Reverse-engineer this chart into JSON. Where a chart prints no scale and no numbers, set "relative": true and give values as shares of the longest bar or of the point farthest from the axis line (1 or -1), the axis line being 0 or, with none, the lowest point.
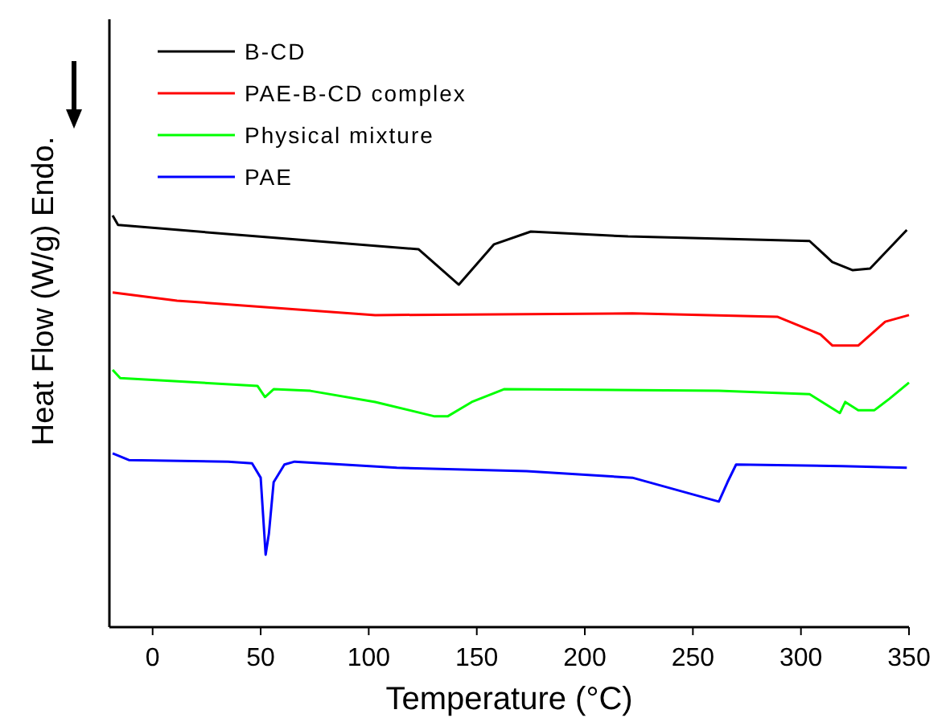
{
  "chart_data": {
    "type": "line",
    "relative": true,
    "xlabel": "Temperature (°C)",
    "ylabel": "Heat Flow (W/g) Endo.",
    "xlim": [
      -20,
      350
    ],
    "xticks": [
      0,
      50,
      100,
      150,
      200,
      250,
      300,
      350
    ],
    "legend": "top left",
    "grid": false,
    "marker": "none",
    "line_style": "solid",
    "series": [
      {
        "name": "B-CD",
        "color": "#000000",
        "x": [
          -18.5,
          -16,
          48.5,
          123,
          141.7,
          158,
          175,
          220,
          304,
          314.5,
          324,
          332,
          349
        ],
        "values": [
          1.0,
          0.977,
          0.949,
          0.918,
          0.832,
          0.93,
          0.961,
          0.949,
          0.938,
          0.887,
          0.867,
          0.871,
          0.965
        ]
      },
      {
        "name": "PAE-B-CD complex",
        "color": "#ff0000",
        "x": [
          -18.5,
          11.3,
          103,
          222,
          289,
          309,
          314.6,
          326.5,
          339,
          350
        ],
        "values": [
          0.813,
          0.793,
          0.758,
          0.762,
          0.754,
          0.711,
          0.684,
          0.684,
          0.742,
          0.758
        ]
      },
      {
        "name": "Physical mixture",
        "color": "#00ff00",
        "x": [
          -18.5,
          -15,
          48.5,
          52,
          56,
          73,
          103,
          130.5,
          136.5,
          147.7,
          162.6,
          262,
          304,
          318,
          320.5,
          326.5,
          334,
          341,
          350
        ],
        "values": [
          0.625,
          0.605,
          0.586,
          0.559,
          0.578,
          0.574,
          0.547,
          0.512,
          0.512,
          0.547,
          0.578,
          0.574,
          0.566,
          0.52,
          0.547,
          0.527,
          0.527,
          0.555,
          0.594
        ]
      },
      {
        "name": "PAE",
        "color": "#0000ff",
        "x": [
          -18.5,
          -11,
          35,
          46,
          50,
          52.3,
          53.8,
          56,
          61,
          65.7,
          113,
          173,
          222,
          262,
          266,
          270,
          319,
          349
        ],
        "values": [
          0.422,
          0.406,
          0.402,
          0.398,
          0.363,
          0.176,
          0.227,
          0.352,
          0.395,
          0.402,
          0.387,
          0.379,
          0.363,
          0.305,
          0.352,
          0.395,
          0.391,
          0.387
        ]
      }
    ]
  }
}
